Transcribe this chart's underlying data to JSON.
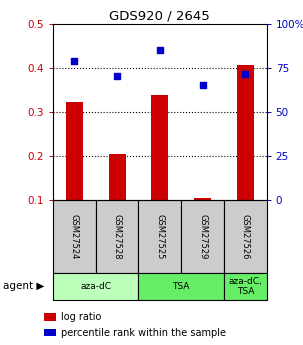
{
  "title": "GDS920 / 2645",
  "samples": [
    "GSM27524",
    "GSM27528",
    "GSM27525",
    "GSM27529",
    "GSM27526"
  ],
  "log_ratios": [
    0.322,
    0.205,
    0.338,
    0.105,
    0.408
  ],
  "percentile_ranks": [
    79,
    70.5,
    85.5,
    65.5,
    71.5
  ],
  "bar_color": "#cc0000",
  "dot_color": "#0000cc",
  "ylim_left": [
    0.1,
    0.5
  ],
  "ylim_right": [
    0,
    100
  ],
  "yticks_left": [
    0.1,
    0.2,
    0.3,
    0.4,
    0.5
  ],
  "yticks_right": [
    0,
    25,
    50,
    75,
    100
  ],
  "ytick_labels_left": [
    "0.1",
    "0.2",
    "0.3",
    "0.4",
    "0.5"
  ],
  "ytick_labels_right": [
    "0",
    "25",
    "50",
    "75",
    "100%"
  ],
  "hgrid_lines": [
    0.2,
    0.3,
    0.4
  ],
  "legend_items": [
    {
      "color": "#cc0000",
      "label": "log ratio"
    },
    {
      "color": "#0000cc",
      "label": "percentile rank within the sample"
    }
  ],
  "bar_width": 0.4,
  "dot_size": 22,
  "sample_box_color": "#cccccc",
  "agent_groups": [
    {
      "cols": [
        0,
        1
      ],
      "label": "aza-dC",
      "color": "#bbffbb"
    },
    {
      "cols": [
        2,
        3
      ],
      "label": "TSA",
      "color": "#66ee66"
    },
    {
      "cols": [
        4,
        4
      ],
      "label": "aza-dC,\nTSA",
      "color": "#66ee66"
    }
  ]
}
